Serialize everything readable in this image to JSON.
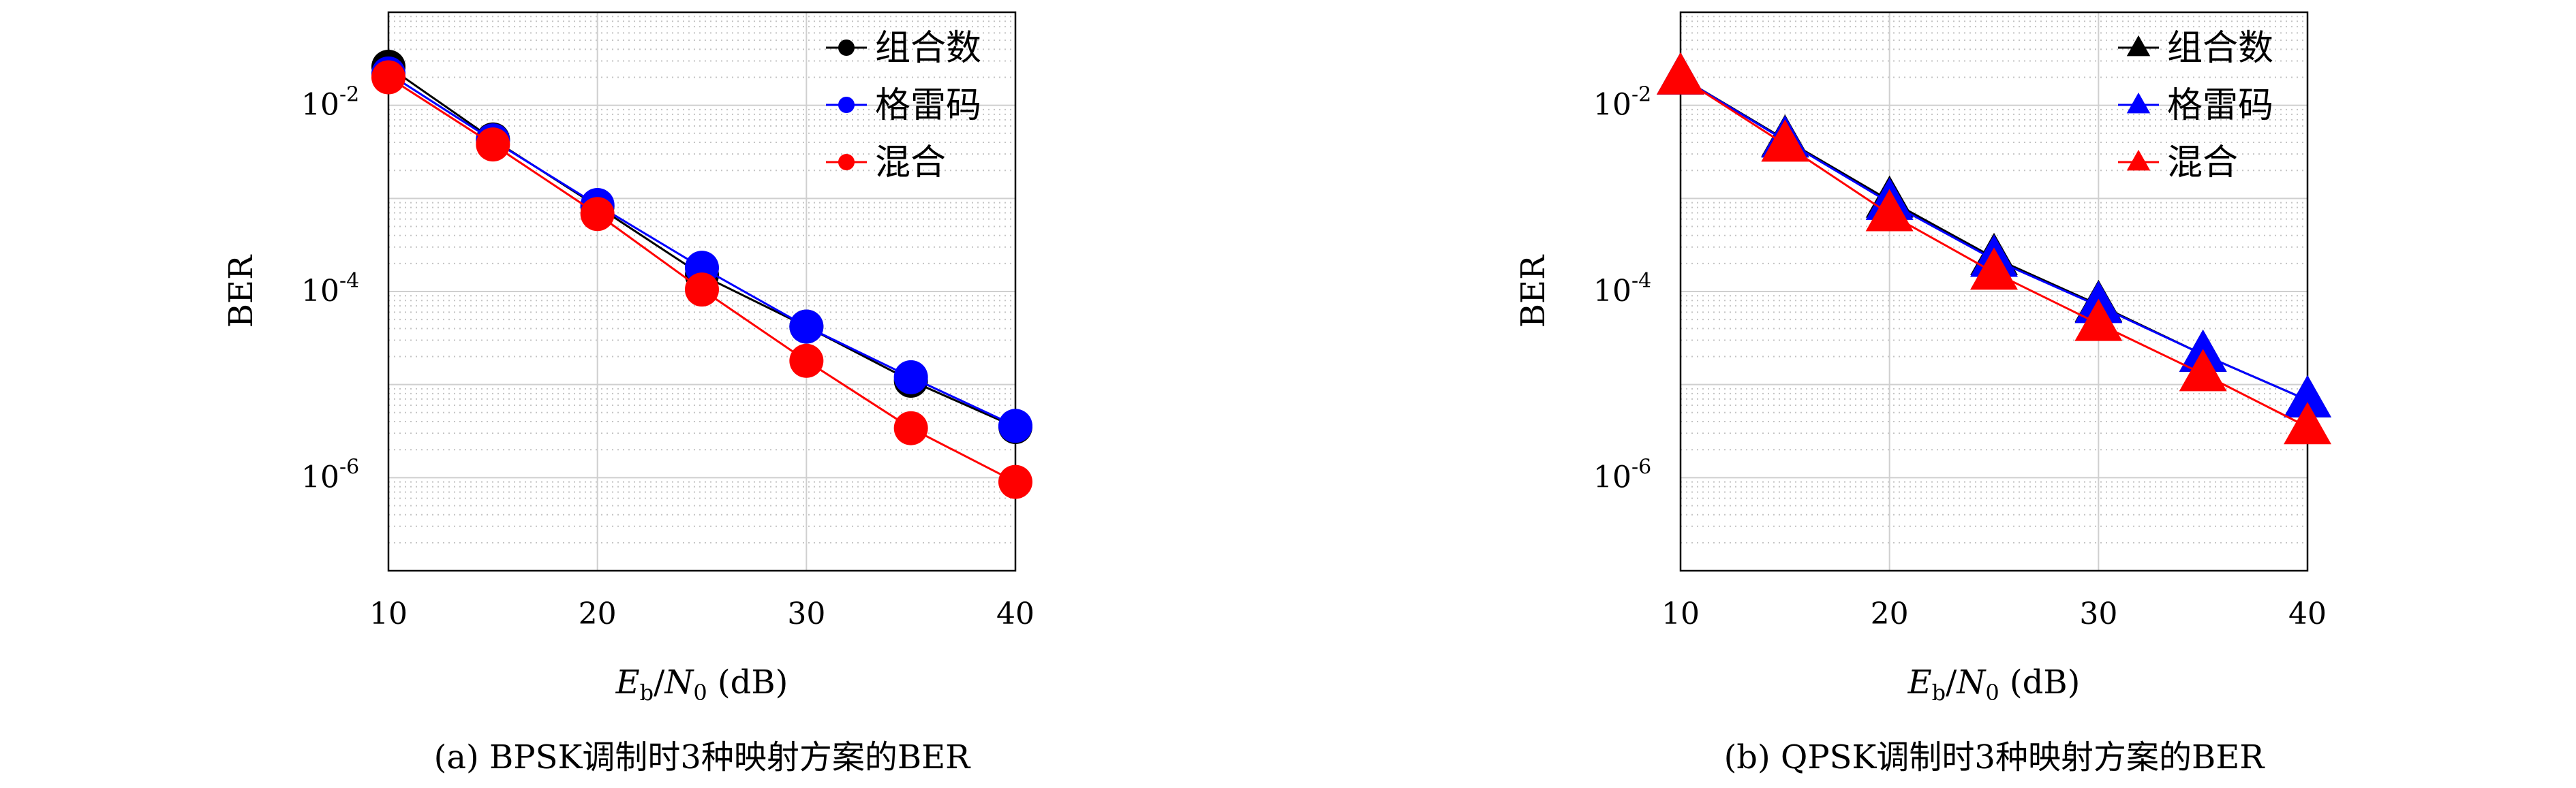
{
  "chart_data": [
    {
      "type": "line",
      "caption": "(a) BPSK调制时3种映射方案的BER",
      "xlabel": "Eb/N0 (dB)",
      "ylabel": "BER",
      "x_ticks": [
        "10",
        "20",
        "30",
        "40"
      ],
      "y_tick_exponents": [
        "-2",
        "-4",
        "-6"
      ],
      "xlim": [
        10,
        40
      ],
      "ylim": [
        1e-07,
        0.1
      ],
      "yscale": "log",
      "grid": true,
      "legend_position": "top-right",
      "marker": "circle",
      "x": [
        10,
        15,
        20,
        25,
        30,
        35,
        40
      ],
      "series": [
        {
          "name": "组合数",
          "color": "#000000",
          "values": [
            0.026,
            0.0043,
            0.00082,
            0.00015,
            4.2e-05,
            1.1e-05,
            3.5e-06
          ]
        },
        {
          "name": "格雷码",
          "color": "#0000ff",
          "values": [
            0.022,
            0.0042,
            0.00085,
            0.00018,
            4.2e-05,
            1.2e-05,
            3.6e-06
          ]
        },
        {
          "name": "混合",
          "color": "#ff0000",
          "values": [
            0.02,
            0.0038,
            0.00068,
            0.000105,
            1.8e-05,
            3.4e-06,
            9e-07
          ]
        }
      ]
    },
    {
      "type": "line",
      "caption": "(b) QPSK调制时3种映射方案的BER",
      "xlabel": "Eb/N0 (dB)",
      "ylabel": "BER",
      "x_ticks": [
        "10",
        "20",
        "30",
        "40"
      ],
      "y_tick_exponents": [
        "-2",
        "-4",
        "-6"
      ],
      "xlim": [
        10,
        40
      ],
      "ylim": [
        1e-07,
        0.1
      ],
      "yscale": "log",
      "grid": true,
      "legend_position": "top-right",
      "marker": "triangle",
      "x": [
        10,
        15,
        20,
        25,
        30,
        35,
        40
      ],
      "series": [
        {
          "name": "组合数",
          "color": "#000000",
          "values": [
            0.02,
            0.0043,
            0.00095,
            0.00023,
            7.2e-05,
            2.1e-05,
            6.8e-06
          ]
        },
        {
          "name": "格雷码",
          "color": "#0000ff",
          "values": [
            0.02,
            0.0042,
            0.0009,
            0.00022,
            7e-05,
            2.1e-05,
            6.8e-06
          ]
        },
        {
          "name": "混合",
          "color": "#ff0000",
          "values": [
            0.02,
            0.0038,
            0.00068,
            0.00016,
            4.5e-05,
            1.3e-05,
            3.5e-06
          ]
        }
      ]
    }
  ]
}
